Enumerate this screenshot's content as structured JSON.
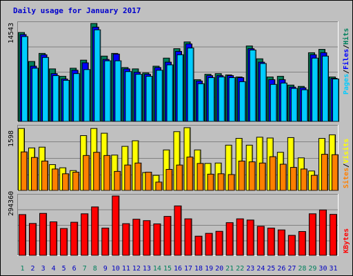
{
  "title": "Daily usage for January 2017",
  "colors": {
    "hits": "#00805c",
    "files": "#0000ff",
    "pages": "#00ccff",
    "visits": "#ffff00",
    "sites": "#ff8000",
    "kbytes": "#ff0000",
    "weekday": "#0000c0",
    "weekend": "#00805c"
  },
  "chart_data": [
    {
      "type": "bar",
      "panel": "hits-files-pages",
      "scale_max_label": "14543",
      "scale_max": 14543,
      "legend": [
        "Pages",
        "Files",
        "Hits"
      ],
      "categories": [
        "1",
        "2",
        "3",
        "4",
        "5",
        "6",
        "7",
        "8",
        "9",
        "10",
        "11",
        "12",
        "13",
        "14",
        "15",
        "16",
        "17",
        "18",
        "19",
        "20",
        "21",
        "22",
        "23",
        "24",
        "25",
        "26",
        "27",
        "28",
        "29",
        "30",
        "31"
      ],
      "series": [
        {
          "name": "Hits",
          "values": [
            13200,
            8900,
            10100,
            7800,
            6700,
            7900,
            9100,
            14543,
            9700,
            10100,
            8000,
            7800,
            7200,
            8200,
            9400,
            10800,
            11800,
            6200,
            7000,
            7100,
            6900,
            6600,
            11200,
            9300,
            6600,
            6700,
            5400,
            5200,
            10200,
            10700,
            6600
          ]
        },
        {
          "name": "Files",
          "values": [
            12900,
            8200,
            9900,
            7100,
            6300,
            7600,
            8700,
            14000,
            9200,
            10000,
            7800,
            7300,
            7000,
            8000,
            8800,
            10400,
            11500,
            6000,
            6800,
            6800,
            6800,
            6500,
            10800,
            8800,
            6200,
            6200,
            5100,
            5000,
            9900,
            10200,
            6400
          ]
        },
        {
          "name": "Pages",
          "values": [
            12600,
            7900,
            9500,
            6800,
            6100,
            7100,
            7700,
            13600,
            9000,
            9000,
            7400,
            7000,
            6700,
            7600,
            8400,
            9900,
            10900,
            5600,
            6500,
            6600,
            6500,
            5900,
            10600,
            8600,
            5500,
            5700,
            4900,
            4700,
            9400,
            9700,
            6300
          ]
        }
      ]
    },
    {
      "type": "bar",
      "panel": "visits-sites",
      "scale_max_label": "1598",
      "scale_max": 1598,
      "legend": [
        "Sites",
        "Visits"
      ],
      "categories": [
        "1",
        "2",
        "3",
        "4",
        "5",
        "6",
        "7",
        "8",
        "9",
        "10",
        "11",
        "12",
        "13",
        "14",
        "15",
        "16",
        "17",
        "18",
        "19",
        "20",
        "21",
        "22",
        "23",
        "24",
        "25",
        "26",
        "27",
        "28",
        "29",
        "30",
        "31"
      ],
      "series": [
        {
          "name": "Visits",
          "values": [
            1560,
            1070,
            1090,
            650,
            570,
            500,
            1380,
            1560,
            1440,
            890,
            1110,
            1250,
            450,
            380,
            1020,
            1480,
            1580,
            1020,
            680,
            690,
            1140,
            1310,
            1140,
            1340,
            1320,
            960,
            1330,
            820,
            490,
            1310,
            1400
          ]
        },
        {
          "name": "Sites",
          "values": [
            970,
            830,
            740,
            540,
            420,
            460,
            880,
            960,
            880,
            480,
            640,
            690,
            460,
            210,
            530,
            640,
            840,
            680,
            410,
            420,
            400,
            740,
            720,
            690,
            850,
            660,
            580,
            540,
            380,
            910,
            900
          ]
        }
      ]
    },
    {
      "type": "bar",
      "panel": "kbytes",
      "scale_max_label": "294360",
      "scale_max": 294360,
      "legend": [
        "KBytes"
      ],
      "categories": [
        "1",
        "2",
        "3",
        "4",
        "5",
        "6",
        "7",
        "8",
        "9",
        "10",
        "11",
        "12",
        "13",
        "14",
        "15",
        "16",
        "17",
        "18",
        "19",
        "20",
        "21",
        "22",
        "23",
        "24",
        "25",
        "26",
        "27",
        "28",
        "29",
        "30",
        "31"
      ],
      "series": [
        {
          "name": "KBytes",
          "values": [
            202000,
            158000,
            208000,
            166000,
            133000,
            164000,
            206000,
            240000,
            135000,
            294360,
            157000,
            179000,
            172000,
            156000,
            193000,
            245000,
            181000,
            95000,
            109000,
            119000,
            162000,
            181000,
            175000,
            144000,
            135000,
            126000,
            99000,
            118000,
            206000,
            225000,
            203000
          ]
        }
      ]
    }
  ],
  "days": [
    "1",
    "2",
    "3",
    "4",
    "5",
    "6",
    "7",
    "8",
    "9",
    "10",
    "11",
    "12",
    "13",
    "14",
    "15",
    "16",
    "17",
    "18",
    "19",
    "20",
    "21",
    "22",
    "23",
    "24",
    "25",
    "26",
    "27",
    "28",
    "29",
    "30",
    "31"
  ],
  "weekend_days": [
    "1",
    "7",
    "8",
    "14",
    "15",
    "21",
    "22",
    "28",
    "29"
  ]
}
